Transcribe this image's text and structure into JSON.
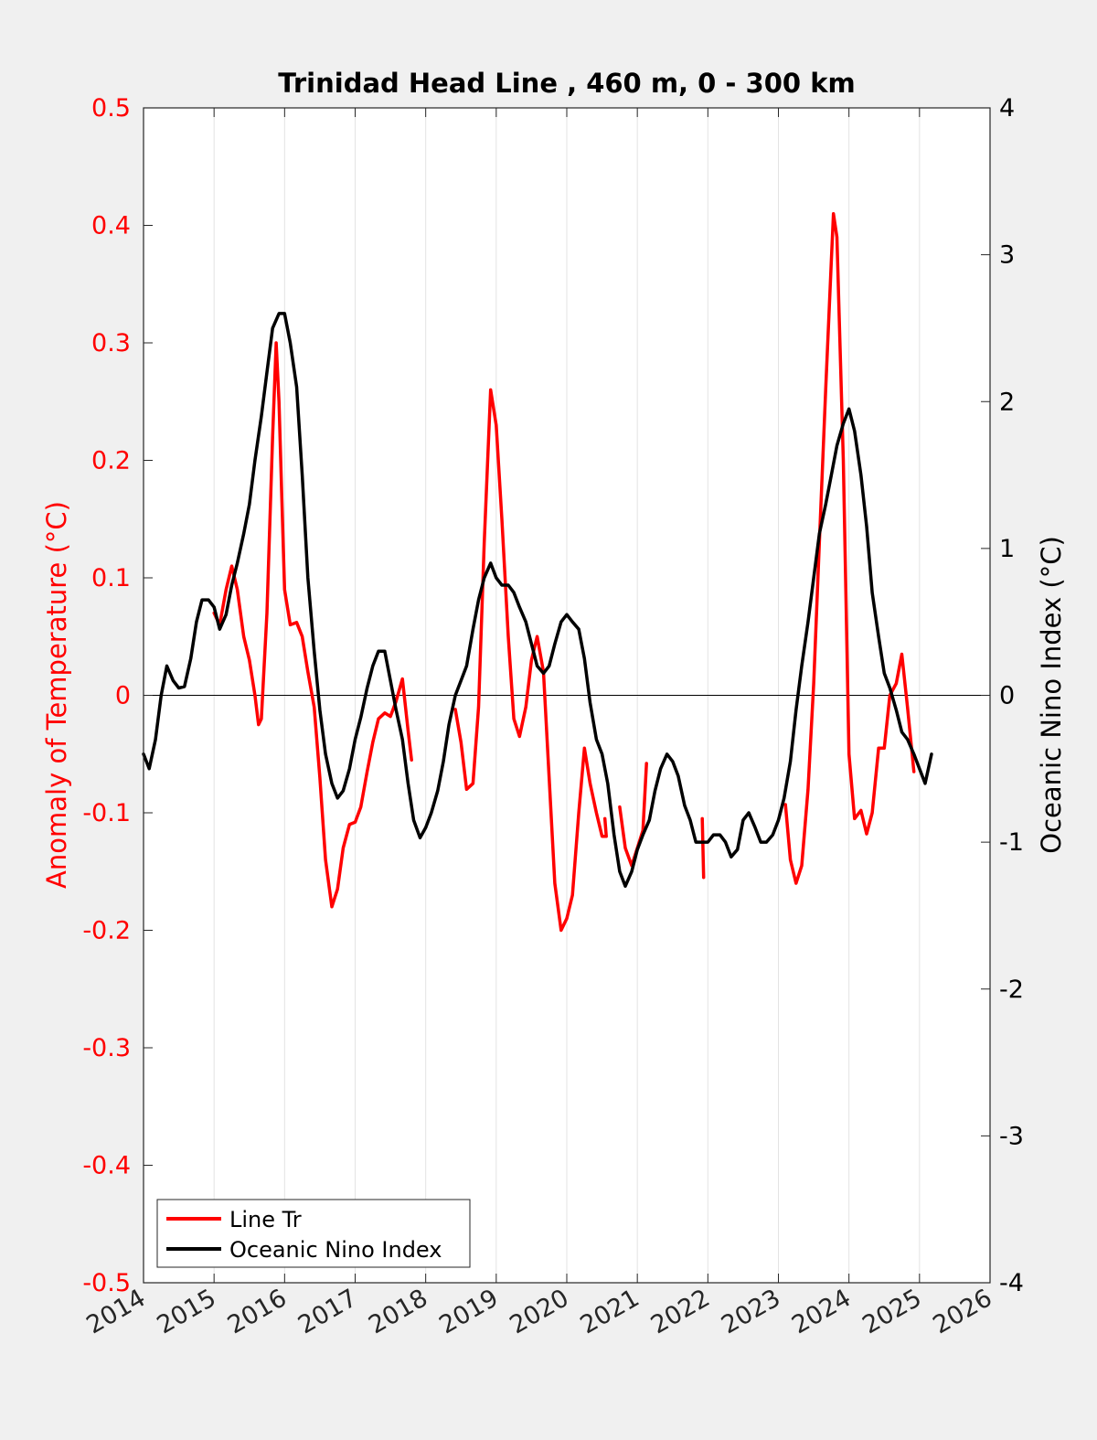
{
  "chart_data": {
    "type": "line",
    "title": "Trinidad Head Line , 460 m, 0 - 300 km",
    "y_left_label": "Anomaly of Temperature (°C)",
    "y_right_label": "Oceanic Nino Index (°C)",
    "x_range": [
      2014,
      2026
    ],
    "y_left_range": [
      -0.5,
      0.5
    ],
    "y_right_range": [
      -4,
      4
    ],
    "x_ticks": [
      "2014",
      "2015",
      "2016",
      "2017",
      "2018",
      "2019",
      "2020",
      "2021",
      "2022",
      "2023",
      "2024",
      "2025",
      "2026"
    ],
    "y_left_ticks": [
      "0.5",
      "0.4",
      "0.3",
      "0.2",
      "0.1",
      "0",
      "-0.1",
      "-0.2",
      "-0.3",
      "-0.4",
      "-0.5"
    ],
    "y_right_ticks": [
      "4",
      "3",
      "2",
      "1",
      "0",
      "-1",
      "-2",
      "-3",
      "-4"
    ],
    "grid_x": true,
    "zero_line": true,
    "legend_position": "bottom-left",
    "colors": {
      "line_tr": "#ff0000",
      "oni": "#000000",
      "left_axis": "#ff0000",
      "right_axis": "#000000"
    },
    "series": [
      {
        "name": "Line Tr",
        "axis": "left",
        "color": "#ff0000",
        "segments": [
          [
            [
              2015.0,
              0.07
            ],
            [
              2015.08,
              0.06
            ],
            [
              2015.17,
              0.09
            ],
            [
              2015.25,
              0.11
            ],
            [
              2015.33,
              0.09
            ],
            [
              2015.42,
              0.05
            ],
            [
              2015.5,
              0.03
            ],
            [
              2015.58,
              0.0
            ],
            [
              2015.63,
              -0.025
            ],
            [
              2015.67,
              -0.02
            ],
            [
              2015.75,
              0.07
            ],
            [
              2015.83,
              0.22
            ],
            [
              2015.88,
              0.3
            ],
            [
              2015.92,
              0.25
            ],
            [
              2015.96,
              0.17
            ],
            [
              2016.0,
              0.09
            ],
            [
              2016.08,
              0.06
            ],
            [
              2016.17,
              0.062
            ],
            [
              2016.25,
              0.05
            ],
            [
              2016.33,
              0.02
            ],
            [
              2016.42,
              -0.01
            ],
            [
              2016.5,
              -0.07
            ],
            [
              2016.58,
              -0.14
            ],
            [
              2016.67,
              -0.18
            ],
            [
              2016.75,
              -0.165
            ],
            [
              2016.83,
              -0.13
            ],
            [
              2016.92,
              -0.11
            ],
            [
              2017.0,
              -0.108
            ],
            [
              2017.08,
              -0.095
            ],
            [
              2017.17,
              -0.065
            ],
            [
              2017.25,
              -0.04
            ],
            [
              2017.33,
              -0.02
            ],
            [
              2017.42,
              -0.015
            ],
            [
              2017.5,
              -0.018
            ],
            [
              2017.58,
              -0.005
            ],
            [
              2017.67,
              0.014
            ],
            [
              2017.75,
              -0.03
            ],
            [
              2017.8,
              -0.055
            ]
          ],
          [
            [
              2018.42,
              -0.012
            ],
            [
              2018.5,
              -0.04
            ],
            [
              2018.58,
              -0.08
            ],
            [
              2018.67,
              -0.075
            ],
            [
              2018.75,
              -0.01
            ],
            [
              2018.83,
              0.13
            ],
            [
              2018.92,
              0.26
            ],
            [
              2019.0,
              0.23
            ],
            [
              2019.08,
              0.15
            ],
            [
              2019.17,
              0.05
            ],
            [
              2019.25,
              -0.02
            ],
            [
              2019.33,
              -0.035
            ],
            [
              2019.42,
              -0.01
            ],
            [
              2019.5,
              0.03
            ],
            [
              2019.58,
              0.05
            ],
            [
              2019.67,
              0.02
            ],
            [
              2019.75,
              -0.07
            ],
            [
              2019.83,
              -0.16
            ],
            [
              2019.92,
              -0.2
            ],
            [
              2020.0,
              -0.19
            ],
            [
              2020.08,
              -0.17
            ],
            [
              2020.17,
              -0.1
            ],
            [
              2020.25,
              -0.045
            ],
            [
              2020.33,
              -0.075
            ],
            [
              2020.42,
              -0.1
            ],
            [
              2020.5,
              -0.12
            ],
            [
              2020.54,
              -0.12
            ]
          ],
          [
            [
              2020.54,
              -0.105
            ],
            [
              2020.56,
              -0.12
            ]
          ],
          [
            [
              2020.75,
              -0.095
            ],
            [
              2020.83,
              -0.13
            ],
            [
              2020.92,
              -0.145
            ],
            [
              2021.0,
              -0.13
            ],
            [
              2021.08,
              -0.115
            ],
            [
              2021.13,
              -0.058
            ]
          ],
          [
            [
              2021.92,
              -0.105
            ],
            [
              2021.94,
              -0.155
            ]
          ],
          [
            [
              2023.1,
              -0.093
            ],
            [
              2023.17,
              -0.14
            ],
            [
              2023.25,
              -0.16
            ],
            [
              2023.33,
              -0.145
            ],
            [
              2023.42,
              -0.08
            ],
            [
              2023.5,
              0.01
            ],
            [
              2023.58,
              0.13
            ],
            [
              2023.67,
              0.26
            ],
            [
              2023.75,
              0.37
            ],
            [
              2023.78,
              0.41
            ],
            [
              2023.83,
              0.39
            ],
            [
              2023.92,
              0.2
            ],
            [
              2024.0,
              -0.05
            ],
            [
              2024.08,
              -0.105
            ],
            [
              2024.17,
              -0.098
            ],
            [
              2024.25,
              -0.118
            ],
            [
              2024.33,
              -0.1
            ],
            [
              2024.42,
              -0.045
            ],
            [
              2024.5,
              -0.045
            ],
            [
              2024.58,
              0.0
            ],
            [
              2024.67,
              0.01
            ],
            [
              2024.75,
              0.035
            ],
            [
              2024.83,
              -0.01
            ],
            [
              2024.92,
              -0.065
            ]
          ]
        ]
      },
      {
        "name": "Oceanic Nino Index",
        "axis": "right",
        "color": "#000000",
        "segments": [
          [
            [
              2014.0,
              -0.4
            ],
            [
              2014.08,
              -0.5
            ],
            [
              2014.17,
              -0.3
            ],
            [
              2014.25,
              0.0
            ],
            [
              2014.33,
              0.2
            ],
            [
              2014.42,
              0.1
            ],
            [
              2014.5,
              0.05
            ],
            [
              2014.58,
              0.06
            ],
            [
              2014.67,
              0.25
            ],
            [
              2014.75,
              0.5
            ],
            [
              2014.83,
              0.65
            ],
            [
              2014.92,
              0.65
            ],
            [
              2015.0,
              0.6
            ],
            [
              2015.08,
              0.45
            ],
            [
              2015.17,
              0.55
            ],
            [
              2015.25,
              0.75
            ],
            [
              2015.33,
              0.9
            ],
            [
              2015.42,
              1.1
            ],
            [
              2015.5,
              1.3
            ],
            [
              2015.58,
              1.6
            ],
            [
              2015.67,
              1.9
            ],
            [
              2015.75,
              2.2
            ],
            [
              2015.83,
              2.5
            ],
            [
              2015.92,
              2.6
            ],
            [
              2016.0,
              2.6
            ],
            [
              2016.08,
              2.4
            ],
            [
              2016.17,
              2.1
            ],
            [
              2016.25,
              1.5
            ],
            [
              2016.33,
              0.8
            ],
            [
              2016.42,
              0.3
            ],
            [
              2016.5,
              -0.1
            ],
            [
              2016.58,
              -0.4
            ],
            [
              2016.67,
              -0.6
            ],
            [
              2016.75,
              -0.7
            ],
            [
              2016.83,
              -0.65
            ],
            [
              2016.92,
              -0.5
            ],
            [
              2017.0,
              -0.3
            ],
            [
              2017.08,
              -0.15
            ],
            [
              2017.17,
              0.05
            ],
            [
              2017.25,
              0.2
            ],
            [
              2017.33,
              0.3
            ],
            [
              2017.42,
              0.3
            ],
            [
              2017.5,
              0.1
            ],
            [
              2017.58,
              -0.1
            ],
            [
              2017.67,
              -0.3
            ],
            [
              2017.75,
              -0.6
            ],
            [
              2017.83,
              -0.85
            ],
            [
              2017.92,
              -0.97
            ],
            [
              2018.0,
              -0.9
            ],
            [
              2018.08,
              -0.8
            ],
            [
              2018.17,
              -0.65
            ],
            [
              2018.25,
              -0.45
            ],
            [
              2018.33,
              -0.2
            ],
            [
              2018.42,
              0.0
            ],
            [
              2018.5,
              0.1
            ],
            [
              2018.58,
              0.2
            ],
            [
              2018.67,
              0.45
            ],
            [
              2018.75,
              0.65
            ],
            [
              2018.83,
              0.8
            ],
            [
              2018.92,
              0.9
            ],
            [
              2019.0,
              0.8
            ],
            [
              2019.08,
              0.75
            ],
            [
              2019.17,
              0.75
            ],
            [
              2019.25,
              0.7
            ],
            [
              2019.33,
              0.6
            ],
            [
              2019.42,
              0.5
            ],
            [
              2019.5,
              0.35
            ],
            [
              2019.58,
              0.2
            ],
            [
              2019.67,
              0.15
            ],
            [
              2019.75,
              0.2
            ],
            [
              2019.83,
              0.35
            ],
            [
              2019.92,
              0.5
            ],
            [
              2020.0,
              0.55
            ],
            [
              2020.08,
              0.5
            ],
            [
              2020.17,
              0.45
            ],
            [
              2020.25,
              0.25
            ],
            [
              2020.33,
              -0.05
            ],
            [
              2020.42,
              -0.3
            ],
            [
              2020.5,
              -0.4
            ],
            [
              2020.58,
              -0.6
            ],
            [
              2020.67,
              -0.95
            ],
            [
              2020.75,
              -1.2
            ],
            [
              2020.83,
              -1.3
            ],
            [
              2020.92,
              -1.2
            ],
            [
              2021.0,
              -1.05
            ],
            [
              2021.08,
              -0.95
            ],
            [
              2021.17,
              -0.85
            ],
            [
              2021.25,
              -0.65
            ],
            [
              2021.33,
              -0.5
            ],
            [
              2021.42,
              -0.4
            ],
            [
              2021.5,
              -0.45
            ],
            [
              2021.58,
              -0.55
            ],
            [
              2021.67,
              -0.75
            ],
            [
              2021.75,
              -0.85
            ],
            [
              2021.83,
              -1.0
            ],
            [
              2021.92,
              -1.0
            ],
            [
              2022.0,
              -1.0
            ],
            [
              2022.08,
              -0.95
            ],
            [
              2022.17,
              -0.95
            ],
            [
              2022.25,
              -1.0
            ],
            [
              2022.33,
              -1.1
            ],
            [
              2022.42,
              -1.05
            ],
            [
              2022.5,
              -0.85
            ],
            [
              2022.58,
              -0.8
            ],
            [
              2022.67,
              -0.9
            ],
            [
              2022.75,
              -1.0
            ],
            [
              2022.83,
              -1.0
            ],
            [
              2022.92,
              -0.95
            ],
            [
              2023.0,
              -0.85
            ],
            [
              2023.08,
              -0.7
            ],
            [
              2023.17,
              -0.45
            ],
            [
              2023.25,
              -0.1
            ],
            [
              2023.33,
              0.2
            ],
            [
              2023.42,
              0.5
            ],
            [
              2023.5,
              0.8
            ],
            [
              2023.58,
              1.1
            ],
            [
              2023.67,
              1.3
            ],
            [
              2023.75,
              1.5
            ],
            [
              2023.83,
              1.7
            ],
            [
              2023.92,
              1.85
            ],
            [
              2024.0,
              1.95
            ],
            [
              2024.08,
              1.8
            ],
            [
              2024.17,
              1.5
            ],
            [
              2024.25,
              1.15
            ],
            [
              2024.33,
              0.7
            ],
            [
              2024.42,
              0.4
            ],
            [
              2024.5,
              0.15
            ],
            [
              2024.58,
              0.05
            ],
            [
              2024.67,
              -0.1
            ],
            [
              2024.75,
              -0.25
            ],
            [
              2024.83,
              -0.3
            ],
            [
              2024.92,
              -0.4
            ],
            [
              2025.0,
              -0.5
            ],
            [
              2025.08,
              -0.6
            ],
            [
              2025.17,
              -0.4
            ]
          ]
        ]
      }
    ]
  }
}
